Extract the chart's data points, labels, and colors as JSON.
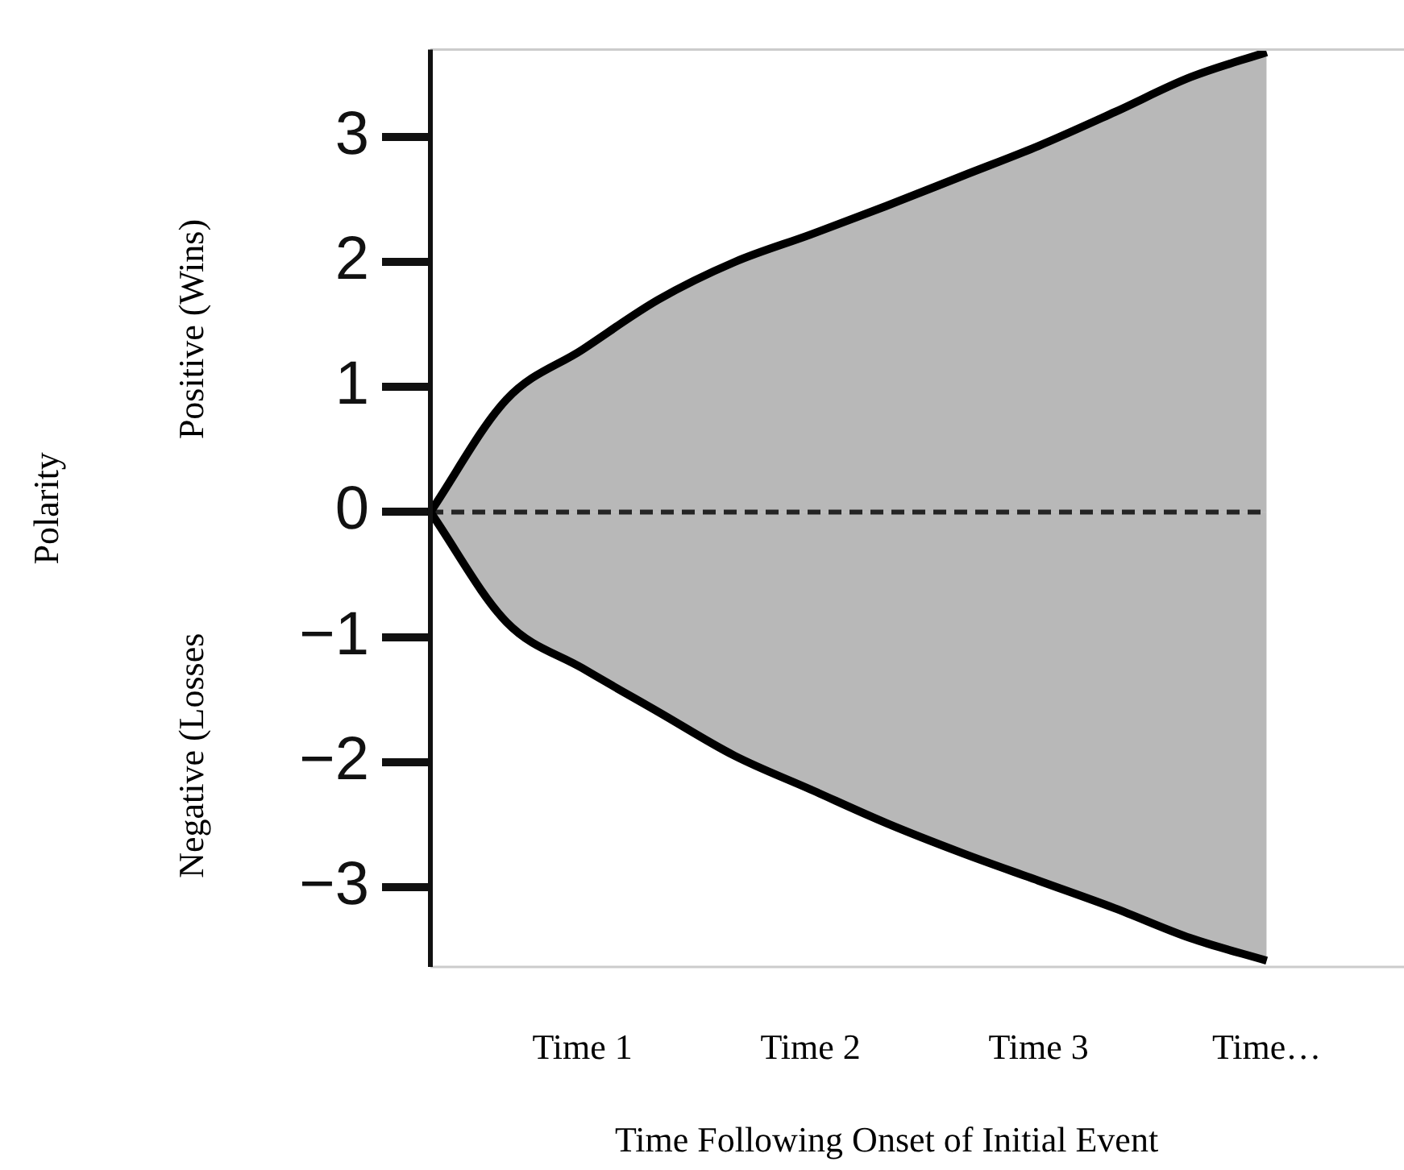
{
  "chart_data": {
    "type": "area",
    "xlabel": "Time Following Onset of Initial Event",
    "annotations": [
      "Polarity",
      "Positive (Wins)",
      "Negative (Losses"
    ],
    "categories": [
      null,
      null,
      "Time 1",
      null,
      null,
      "Time 2",
      null,
      null,
      "Time 3",
      null,
      null,
      "Time…",
      null
    ],
    "ylim": [
      -3.64,
      3.7
    ],
    "yticks": [
      -3,
      -2,
      -1,
      0,
      1,
      2,
      3
    ],
    "grid": false,
    "legend": false,
    "marker": "none",
    "line_style": "solid",
    "ref_lines": [
      {
        "axis": "y",
        "value": 0,
        "color": "#333333",
        "line_style": "dashed"
      }
    ],
    "series": [
      {
        "color": "#000000",
        "values": [
          0,
          0.9,
          1.3,
          1.7,
          2.0,
          2.22,
          2.45,
          2.69,
          2.93,
          3.2,
          3.48,
          3.68,
          null
        ]
      },
      {
        "color": "#000000",
        "values": [
          0,
          -0.88,
          -1.25,
          -1.6,
          -1.95,
          -2.22,
          -2.49,
          -2.73,
          -2.95,
          -3.17,
          -3.41,
          -3.59,
          null
        ]
      }
    ]
  }
}
